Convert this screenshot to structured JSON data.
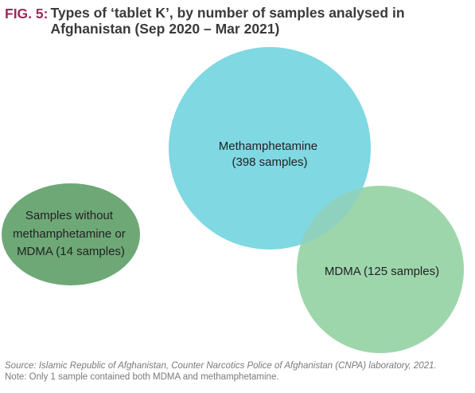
{
  "figure": {
    "label": "FIG. 5:",
    "title": "Types of ‘tablet K’, by number of samples analysed in Afghanistan (Sep 2020 – Mar 2021)"
  },
  "diagram": {
    "type": "venn",
    "sets": [
      {
        "key": "meth",
        "lines": [
          "Methamphetamine",
          "(398 samples)"
        ],
        "samples": 398,
        "color": "#7fd8e2"
      },
      {
        "key": "mdma",
        "lines": [
          "MDMA (125 samples)"
        ],
        "samples": 125,
        "color": "#9ed6ac"
      },
      {
        "key": "neither",
        "lines": [
          "Samples without",
          "methamphetamine or",
          "MDMA (14 samples)"
        ],
        "samples": 14,
        "color": "#6ea877"
      }
    ],
    "overlap": {
      "sets": [
        "meth",
        "mdma"
      ],
      "samples": 1,
      "color": "#8fd1bf"
    }
  },
  "footer": {
    "source": "Source: Islamic Republic of Afghanistan, Counter Narcotics Police of Afghanistan (CNPA) laboratory, 2021.",
    "note": "Note: Only 1 sample contained both MDMA and methamphetamine."
  }
}
